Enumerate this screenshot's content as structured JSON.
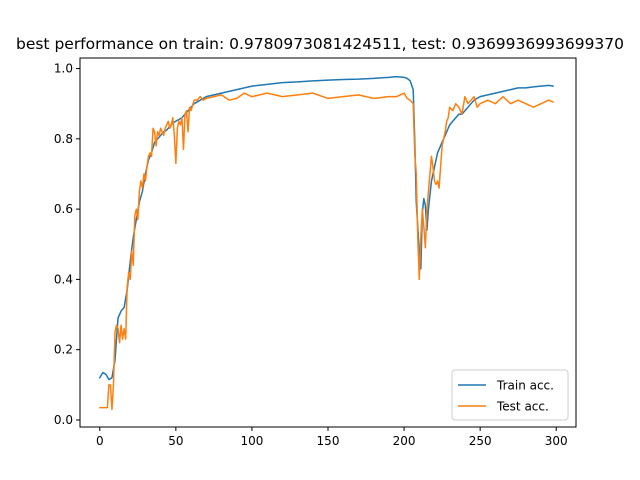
{
  "chart_data": {
    "type": "line",
    "title": "best performance on train: 0.9780973081424511, test: 0.9369936993699370",
    "xlabel": "",
    "ylabel": "",
    "xlim": [
      -13,
      313
    ],
    "ylim": [
      -0.02,
      1.03
    ],
    "xticks": [
      0,
      50,
      100,
      150,
      200,
      250,
      300
    ],
    "yticks": [
      0.0,
      0.2,
      0.4,
      0.6,
      0.8,
      1.0
    ],
    "xtick_labels": [
      "0",
      "50",
      "100",
      "150",
      "200",
      "250",
      "300"
    ],
    "ytick_labels": [
      "0.0",
      "0.2",
      "0.4",
      "0.6",
      "0.8",
      "1.0"
    ],
    "grid": false,
    "legend": {
      "placement": "lower-right",
      "entries": [
        "Train acc.",
        "Test acc."
      ]
    },
    "series": [
      {
        "name": "Train acc.",
        "color": "#1f77b4",
        "x": [
          0,
          2,
          4,
          6,
          8,
          10,
          12,
          14,
          16,
          18,
          20,
          22,
          24,
          26,
          28,
          30,
          32,
          34,
          36,
          38,
          40,
          42,
          44,
          46,
          48,
          50,
          52,
          54,
          56,
          58,
          60,
          62,
          64,
          66,
          68,
          70,
          75,
          80,
          85,
          90,
          95,
          100,
          110,
          120,
          130,
          140,
          150,
          160,
          170,
          180,
          190,
          195,
          200,
          202,
          204,
          206,
          207,
          208,
          209,
          210,
          211,
          212,
          213,
          214,
          215,
          216,
          218,
          220,
          222,
          224,
          226,
          228,
          230,
          232,
          234,
          236,
          238,
          240,
          242,
          244,
          246,
          248,
          250,
          255,
          260,
          265,
          270,
          275,
          280,
          285,
          290,
          295,
          298
        ],
        "y": [
          0.12,
          0.135,
          0.13,
          0.115,
          0.12,
          0.17,
          0.29,
          0.31,
          0.32,
          0.37,
          0.45,
          0.52,
          0.57,
          0.62,
          0.65,
          0.7,
          0.74,
          0.76,
          0.79,
          0.8,
          0.81,
          0.82,
          0.825,
          0.835,
          0.845,
          0.85,
          0.855,
          0.86,
          0.87,
          0.88,
          0.89,
          0.9,
          0.905,
          0.91,
          0.915,
          0.92,
          0.925,
          0.93,
          0.935,
          0.94,
          0.945,
          0.95,
          0.955,
          0.96,
          0.962,
          0.965,
          0.967,
          0.969,
          0.97,
          0.972,
          0.975,
          0.977,
          0.975,
          0.972,
          0.965,
          0.94,
          0.8,
          0.62,
          0.55,
          0.48,
          0.43,
          0.59,
          0.63,
          0.61,
          0.54,
          0.6,
          0.68,
          0.72,
          0.76,
          0.78,
          0.8,
          0.82,
          0.84,
          0.85,
          0.86,
          0.87,
          0.87,
          0.88,
          0.89,
          0.9,
          0.91,
          0.915,
          0.92,
          0.925,
          0.93,
          0.935,
          0.94,
          0.945,
          0.945,
          0.948,
          0.95,
          0.952,
          0.95
        ]
      },
      {
        "name": "Test acc.",
        "color": "#ff7f0e",
        "x": [
          0,
          2,
          4,
          5,
          6,
          7,
          8,
          9,
          10,
          11,
          12,
          13,
          14,
          15,
          16,
          17,
          18,
          19,
          20,
          21,
          22,
          23,
          24,
          25,
          26,
          27,
          28,
          29,
          30,
          31,
          32,
          33,
          34,
          35,
          36,
          37,
          38,
          39,
          40,
          41,
          42,
          43,
          44,
          45,
          46,
          47,
          48,
          49,
          50,
          51,
          52,
          53,
          54,
          55,
          56,
          57,
          58,
          59,
          60,
          62,
          64,
          66,
          68,
          70,
          75,
          80,
          85,
          90,
          95,
          100,
          110,
          120,
          130,
          140,
          150,
          160,
          170,
          180,
          190,
          195,
          200,
          202,
          204,
          206,
          207,
          208,
          209,
          210,
          211,
          212,
          213,
          214,
          215,
          216,
          217,
          218,
          219,
          220,
          221,
          222,
          223,
          224,
          225,
          226,
          227,
          228,
          229,
          230,
          232,
          234,
          236,
          238,
          240,
          242,
          244,
          246,
          248,
          250,
          255,
          260,
          265,
          270,
          275,
          280,
          285,
          290,
          295,
          298
        ],
        "y": [
          0.035,
          0.035,
          0.035,
          0.035,
          0.1,
          0.1,
          0.03,
          0.1,
          0.25,
          0.27,
          0.26,
          0.22,
          0.27,
          0.23,
          0.26,
          0.23,
          0.38,
          0.42,
          0.4,
          0.48,
          0.44,
          0.58,
          0.6,
          0.57,
          0.65,
          0.68,
          0.66,
          0.7,
          0.68,
          0.72,
          0.75,
          0.76,
          0.75,
          0.83,
          0.82,
          0.78,
          0.82,
          0.81,
          0.83,
          0.82,
          0.81,
          0.83,
          0.84,
          0.85,
          0.83,
          0.84,
          0.86,
          0.81,
          0.73,
          0.83,
          0.85,
          0.84,
          0.86,
          0.77,
          0.87,
          0.88,
          0.82,
          0.89,
          0.88,
          0.91,
          0.91,
          0.92,
          0.91,
          0.915,
          0.92,
          0.925,
          0.91,
          0.915,
          0.93,
          0.92,
          0.93,
          0.92,
          0.925,
          0.93,
          0.915,
          0.92,
          0.925,
          0.915,
          0.92,
          0.92,
          0.93,
          0.915,
          0.91,
          0.9,
          0.76,
          0.7,
          0.52,
          0.4,
          0.52,
          0.6,
          0.55,
          0.49,
          0.6,
          0.65,
          0.7,
          0.75,
          0.72,
          0.68,
          0.67,
          0.68,
          0.66,
          0.72,
          0.78,
          0.8,
          0.82,
          0.85,
          0.86,
          0.89,
          0.88,
          0.9,
          0.89,
          0.87,
          0.92,
          0.9,
          0.91,
          0.92,
          0.89,
          0.9,
          0.91,
          0.9,
          0.92,
          0.9,
          0.91,
          0.9,
          0.89,
          0.9,
          0.91,
          0.905
        ]
      }
    ]
  }
}
